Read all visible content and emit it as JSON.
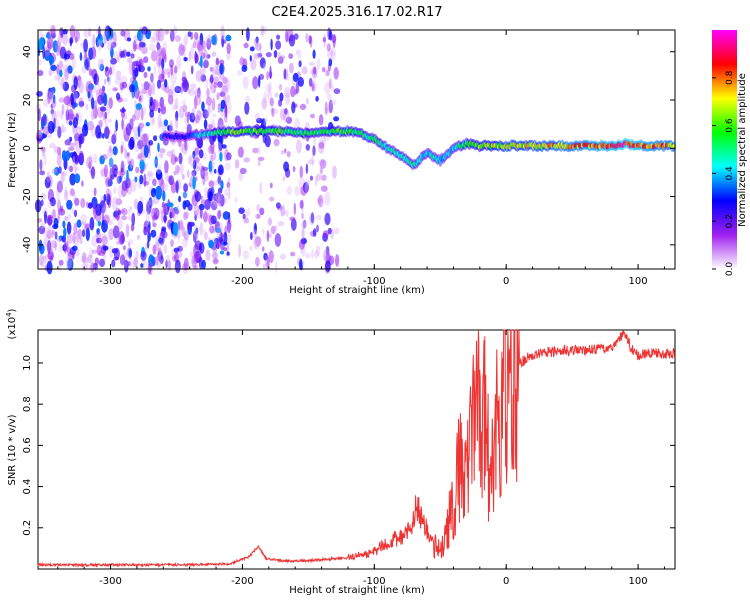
{
  "title": "C2E4.2025.316.17.02.R17",
  "chart_data": [
    {
      "type": "heatmap",
      "name": "spectrogram",
      "xlabel": "Height of straight line (km)",
      "ylabel": "Frequency (Hz)",
      "xlim": [
        -355,
        128
      ],
      "ylim": [
        -50,
        49
      ],
      "xticks": [
        -300,
        -200,
        -100,
        0,
        100
      ],
      "yticks": [
        -40,
        -20,
        0,
        20,
        40
      ],
      "colorbar": {
        "label": "Normalized spectral amplitude",
        "range": [
          0,
          1
        ],
        "ticks": [
          0.0,
          0.2,
          0.4,
          0.6,
          0.8
        ],
        "stops": [
          "#ffffff",
          "#a020f0",
          "#0000ff",
          "#00ffff",
          "#00ff00",
          "#ffff00",
          "#ff0000",
          "#ff00ff"
        ]
      },
      "noise_regions": [
        {
          "x": [
            -355,
            -210
          ],
          "density": 1.0
        },
        {
          "x": [
            -205,
            -128
          ],
          "density": 0.45
        }
      ],
      "signal_track": {
        "x": [
          -260,
          -240,
          -210,
          -190,
          -170,
          -150,
          -130,
          -120,
          -110,
          -100,
          -90,
          -80,
          -70,
          -60,
          -50,
          -40,
          -30,
          -20,
          -10,
          0,
          20,
          40,
          60,
          80,
          90,
          100,
          110,
          128
        ],
        "freq": [
          5,
          5,
          7,
          7,
          7,
          6,
          7,
          7,
          6,
          4,
          0,
          -3,
          -7,
          -2,
          -5,
          0,
          2,
          1,
          1,
          1,
          1,
          1,
          1,
          1,
          2,
          1,
          1,
          1
        ],
        "amplitude": [
          0.25,
          0.3,
          0.6,
          0.6,
          0.55,
          0.5,
          0.55,
          0.55,
          0.5,
          0.5,
          0.45,
          0.45,
          0.45,
          0.4,
          0.45,
          0.4,
          0.55,
          0.6,
          0.65,
          0.7,
          0.7,
          0.75,
          0.8,
          0.85,
          0.9,
          0.85,
          0.8,
          0.75
        ]
      }
    },
    {
      "type": "line",
      "name": "snr",
      "xlabel": "Height of straight line (km)",
      "ylabel": "SNR (10 * v/v)",
      "y_multiplier": "(x10^4)",
      "y_multiplier_base": "(x10",
      "y_multiplier_exp": "4",
      "y_multiplier_close": ")",
      "xlim": [
        -355,
        128
      ],
      "ylim": [
        0,
        1.16
      ],
      "xticks": [
        -300,
        -200,
        -100,
        0,
        100
      ],
      "yticks": [
        0.2,
        0.4,
        0.6,
        0.8,
        1.0
      ],
      "series": [
        {
          "name": "SNR",
          "color": "#ee3333",
          "x": [
            -355,
            -300,
            -250,
            -210,
            -195,
            -188,
            -182,
            -170,
            -150,
            -130,
            -110,
            -100,
            -90,
            -80,
            -72,
            -68,
            -62,
            -55,
            -50,
            -45,
            -40,
            -35,
            -30,
            -25,
            -20,
            -15,
            -12,
            -10,
            -5,
            0,
            10,
            20,
            30,
            40,
            50,
            60,
            70,
            80,
            85,
            90,
            95,
            100,
            110,
            120,
            128
          ],
          "y": [
            0.02,
            0.02,
            0.02,
            0.025,
            0.06,
            0.11,
            0.05,
            0.04,
            0.04,
            0.05,
            0.06,
            0.08,
            0.12,
            0.15,
            0.18,
            0.3,
            0.2,
            0.12,
            0.1,
            0.2,
            0.35,
            0.55,
            0.45,
            0.7,
            0.9,
            0.8,
            0.35,
            0.55,
            0.85,
            0.9,
            1.0,
            1.04,
            1.05,
            1.06,
            1.06,
            1.06,
            1.07,
            1.08,
            1.12,
            1.14,
            1.07,
            1.04,
            1.05,
            1.04,
            1.05
          ]
        }
      ]
    }
  ]
}
